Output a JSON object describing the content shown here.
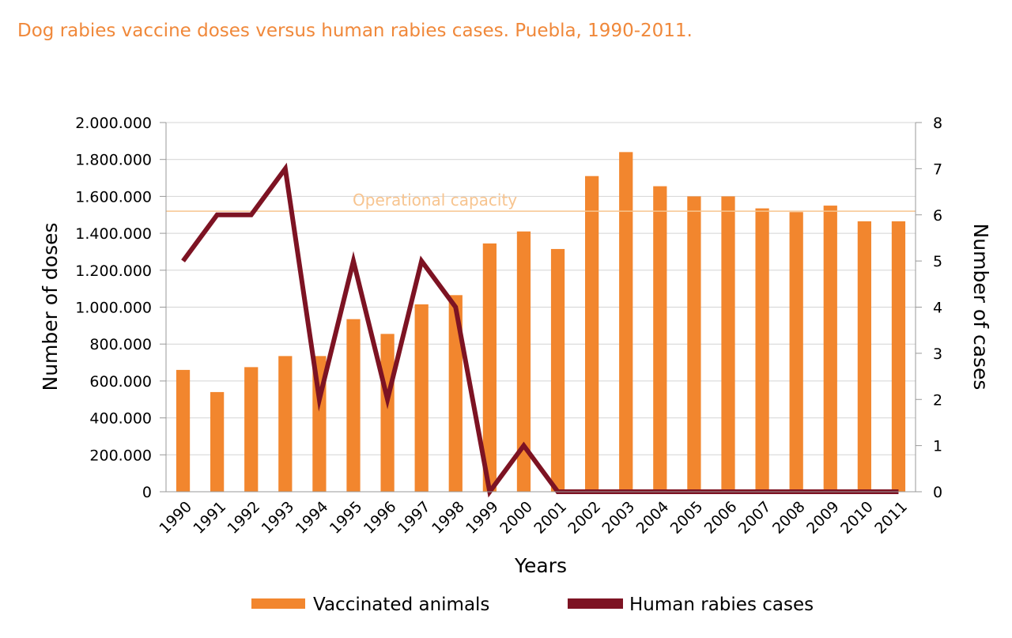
{
  "title": "Dog rabies vaccine doses versus human rabies cases. Puebla, 1990-2011.",
  "chart_data": {
    "type": "bar",
    "title": "Dog rabies vaccine doses versus human rabies cases. Puebla, 1990-2011.",
    "xlabel": "Years",
    "ylabel": "Number of doses",
    "y2label": "Number of cases",
    "ylim": [
      0,
      2000000
    ],
    "y2lim": [
      0,
      8
    ],
    "y_ticks": [
      "0",
      "200.000",
      "400.000",
      "600.000",
      "800.000",
      "1.000.000",
      "1.200.000",
      "1.400.000",
      "1.600.000",
      "1.800.000",
      "2.000.000"
    ],
    "y2_ticks": [
      "0",
      "1",
      "2",
      "3",
      "4",
      "5",
      "6",
      "7",
      "8"
    ],
    "categories": [
      "1990",
      "1991",
      "1992",
      "1993",
      "1994",
      "1995",
      "1996",
      "1997",
      "1998",
      "1999",
      "2000",
      "2001",
      "2002",
      "2003",
      "2004",
      "2005",
      "2006",
      "2007",
      "2008",
      "2009",
      "2010",
      "2011"
    ],
    "series": [
      {
        "name": "Vaccinated animals",
        "type": "bar",
        "axis": "left",
        "color": "#f2862e",
        "values": [
          660000,
          540000,
          675000,
          735000,
          735000,
          935000,
          855000,
          1015000,
          1065000,
          1345000,
          1410000,
          1315000,
          1710000,
          1840000,
          1655000,
          1600000,
          1600000,
          1535000,
          1515000,
          1550000,
          1465000,
          1465000
        ]
      },
      {
        "name": "Human rabies cases",
        "type": "line",
        "axis": "right",
        "color": "#7d1323",
        "values": [
          5,
          6,
          6,
          7,
          2,
          5,
          2,
          5,
          4,
          0,
          1,
          0,
          0,
          0,
          0,
          0,
          0,
          0,
          0,
          0,
          0,
          0
        ]
      }
    ],
    "reference_line": {
      "label": "Operational capacity",
      "value": 1520000,
      "color": "#f7c48f"
    },
    "grid": true,
    "legend_position": "bottom"
  }
}
